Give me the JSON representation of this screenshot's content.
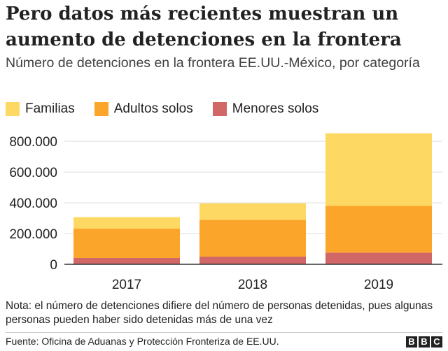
{
  "header": {
    "title": "Pero datos más recientes muestran un aumento de detenciones en la frontera",
    "subtitle": "Número de detenciones en la frontera EE.UU.-México, por categoría"
  },
  "footer": {
    "note": "Nota: el número de detenciones difiere del número de personas detenidas, pues algunas personas pueden haber sido detenidas más de una vez",
    "source": "Fuente: Oficina de Aduanas y Protección Fronteriza de EE.UU.",
    "logo_letters": [
      "B",
      "B",
      "C"
    ]
  },
  "chart_data": {
    "type": "bar",
    "stacked": true,
    "title": "",
    "xlabel": "",
    "ylabel": "",
    "categories": [
      "2017",
      "2018",
      "2019"
    ],
    "series": [
      {
        "name": "Menores solos",
        "color": "#d26767",
        "values": [
          41000,
          50000,
          76000
        ]
      },
      {
        "name": "Adultos solos",
        "color": "#fca52b",
        "values": [
          191000,
          240000,
          304000
        ]
      },
      {
        "name": "Familias",
        "color": "#fdd964",
        "values": [
          75000,
          107000,
          473000
        ]
      }
    ],
    "legend_order": [
      "Familias",
      "Adultos solos",
      "Menores solos"
    ],
    "legend_position": "top-left",
    "ylim": [
      0,
      860000
    ],
    "yticks": [
      0,
      200000,
      400000,
      600000,
      800000
    ],
    "ytick_labels": [
      "0",
      "200.000",
      "400.000",
      "600.000",
      "800.000"
    ],
    "grid": "horizontal"
  }
}
